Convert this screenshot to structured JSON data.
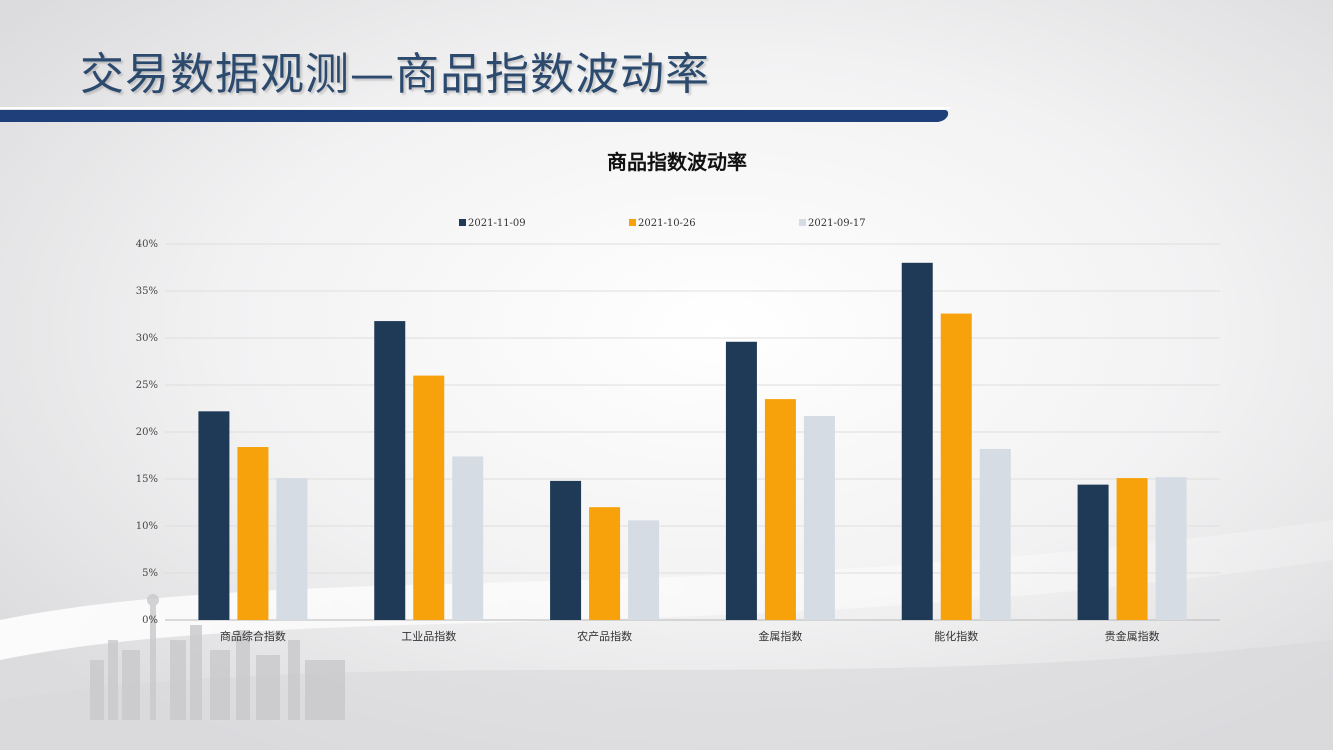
{
  "slide": {
    "title": "交易数据观测—商品指数波动率",
    "accent_color": "#1f3f7a"
  },
  "chart_data": {
    "type": "bar",
    "title": "商品指数波动率",
    "xlabel": "",
    "ylabel": "",
    "categories": [
      "商品综合指数",
      "工业品指数",
      "农产品指数",
      "金属指数",
      "能化指数",
      "贵金属指数"
    ],
    "series": [
      {
        "name": "2021-11-09",
        "color": "#1f3a57",
        "values": [
          22.2,
          31.8,
          14.8,
          29.6,
          38.0,
          14.4
        ]
      },
      {
        "name": "2021-10-26",
        "color": "#f7a20a",
        "values": [
          18.4,
          26.0,
          12.0,
          23.5,
          32.6,
          15.1
        ]
      },
      {
        "name": "2021-09-17",
        "color": "#d5dce4",
        "values": [
          15.1,
          17.4,
          10.6,
          21.7,
          18.2,
          15.2
        ]
      }
    ],
    "ylim": [
      0,
      40
    ],
    "yticks": [
      "0%",
      "5%",
      "10%",
      "15%",
      "20%",
      "25%",
      "30%",
      "35%",
      "40%"
    ],
    "grid": true,
    "legend_position": "top"
  }
}
